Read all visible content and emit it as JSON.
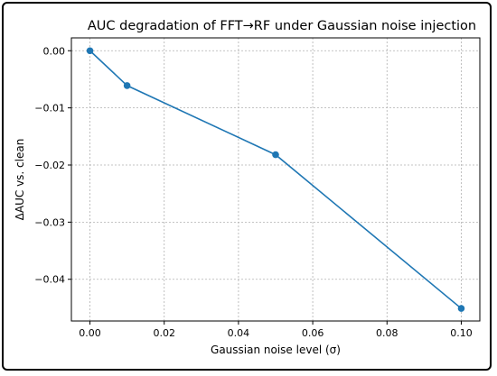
{
  "chart_data": {
    "type": "line",
    "title": "AUC degradation of FFT→RF under Gaussian noise injection",
    "xlabel": "Gaussian noise level (σ)",
    "ylabel": "ΔAUC vs. clean",
    "xlim": [
      -0.005,
      0.105
    ],
    "ylim": [
      -0.0473,
      0.00225
    ],
    "xticks": [
      0.0,
      0.02,
      0.04,
      0.06,
      0.08,
      0.1
    ],
    "xtick_labels": [
      "0.00",
      "0.02",
      "0.04",
      "0.06",
      "0.08",
      "0.10"
    ],
    "yticks": [
      0.0,
      -0.01,
      -0.02,
      -0.03,
      -0.04
    ],
    "ytick_labels": [
      "0.00",
      "−0.01",
      "−0.02",
      "−0.03",
      "−0.04"
    ],
    "grid": true,
    "series": [
      {
        "color": "#1f77b4",
        "x": [
          0.0,
          0.01,
          0.05,
          0.1
        ],
        "y": [
          0.0,
          -0.0061,
          -0.0182,
          -0.0451
        ]
      }
    ]
  }
}
